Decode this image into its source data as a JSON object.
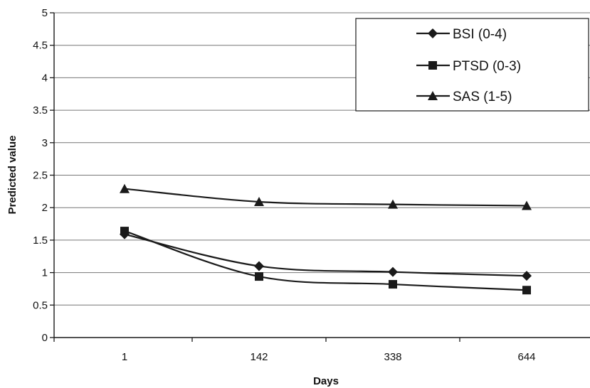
{
  "chart_data": {
    "type": "line",
    "categories": [
      "1",
      "142",
      "338",
      "644"
    ],
    "series": [
      {
        "name": "BSI (0-4)",
        "marker": "diamond",
        "values": [
          1.59,
          1.1,
          1.01,
          0.95
        ]
      },
      {
        "name": "PTSD (0-3)",
        "marker": "square",
        "values": [
          1.64,
          0.94,
          0.82,
          0.73
        ]
      },
      {
        "name": "SAS (1-5)",
        "marker": "triangle",
        "values": [
          2.29,
          2.09,
          2.05,
          2.03
        ]
      }
    ],
    "xlabel": "Days",
    "ylabel": "Predicted value",
    "ylim": [
      0,
      5
    ],
    "yticks": [
      "0",
      "0.5",
      "1",
      "1.5",
      "2",
      "2.5",
      "3",
      "3.5",
      "4",
      "4.5",
      "5"
    ],
    "grid": true,
    "legend_position": "top-right",
    "colors": {
      "line": "#1a1a1a",
      "grid": "#777777",
      "background": "#ffffff"
    }
  }
}
